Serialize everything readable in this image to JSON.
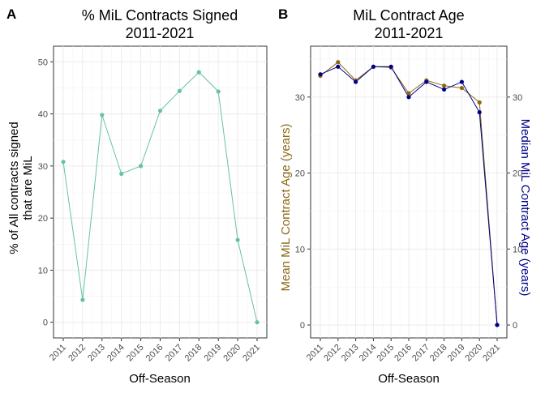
{
  "chart_data": [
    {
      "panel_tag": "A",
      "type": "line",
      "title": "% MiL Contracts Signed",
      "subtitle": "2011-2021",
      "xlabel": "Off-Season",
      "ylabel_line1": "% of All contracts signed",
      "ylabel_line2": "that are MiL",
      "categories": [
        "2011",
        "2012",
        "2013",
        "2014",
        "2015",
        "2016",
        "2017",
        "2018",
        "2019",
        "2020",
        "2021"
      ],
      "ylim": [
        -3,
        53
      ],
      "yticks": [
        0,
        10,
        20,
        30,
        40,
        50
      ],
      "grid": true,
      "series": [
        {
          "color": "#66c2a5",
          "values": [
            30.8,
            4.3,
            39.8,
            28.5,
            30.0,
            40.6,
            44.4,
            48.0,
            44.3,
            15.8,
            0.0
          ]
        }
      ]
    },
    {
      "panel_tag": "B",
      "type": "line",
      "title": "MiL Contract Age",
      "subtitle": "2011-2021",
      "xlabel": "Off-Season",
      "ylabel": "Mean MiL Contract Age (years)",
      "ylabel_right": "Median MiL Contract Age (years)",
      "ylabel_color": "#8b6914",
      "ylabel_right_color": "#00008b",
      "categories": [
        "2011",
        "2012",
        "2013",
        "2014",
        "2015",
        "2016",
        "2017",
        "2018",
        "2019",
        "2020",
        "2021"
      ],
      "ylim": [
        -1.7,
        36.7
      ],
      "yticks": [
        0,
        10,
        20,
        30
      ],
      "grid": true,
      "series": [
        {
          "color": "#8b6914",
          "values": [
            32.8,
            34.6,
            32.2,
            34.0,
            33.9,
            30.5,
            32.2,
            31.5,
            31.2,
            29.3,
            0.0
          ]
        },
        {
          "color": "#00008b",
          "values": [
            33.0,
            34.0,
            32.0,
            34.0,
            34.0,
            30.0,
            32.0,
            31.0,
            32.0,
            28.0,
            0.0
          ]
        }
      ]
    }
  ]
}
